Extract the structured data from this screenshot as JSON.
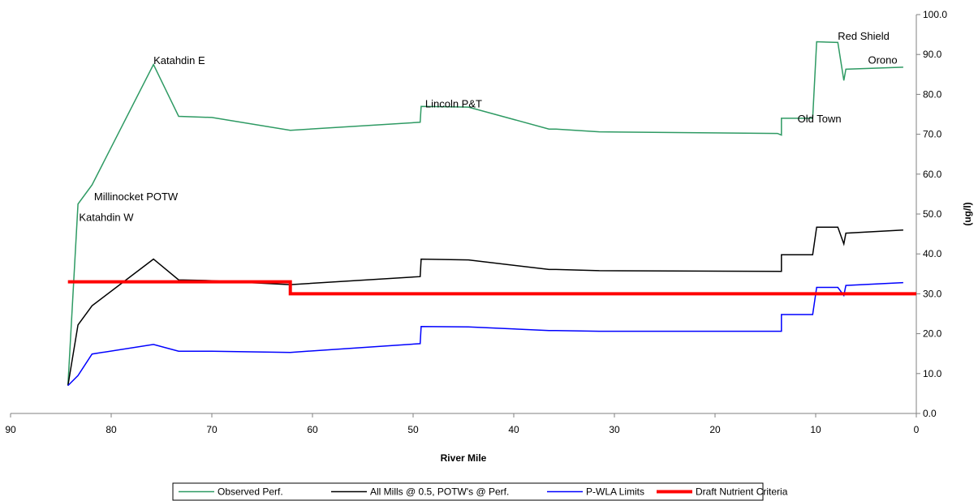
{
  "chart_data": {
    "type": "line",
    "xlabel": "River Mile",
    "ylabel": "(ug/l)",
    "xlim": [
      90,
      0
    ],
    "ylim": [
      0,
      100
    ],
    "x_ticks": [
      "90",
      "80",
      "70",
      "60",
      "50",
      "40",
      "30",
      "20",
      "10",
      "0"
    ],
    "y_ticks": [
      "0.0",
      "10.0",
      "20.0",
      "30.0",
      "40.0",
      "50.0",
      "60.0",
      "70.0",
      "80.0",
      "90.0",
      "100.0"
    ],
    "grid": false,
    "legend_position": "bottom",
    "series": [
      {
        "name": "Observed Perf.",
        "color": "#2e9a63",
        "points": [
          [
            84.3,
            7
          ],
          [
            83.3,
            52.5
          ],
          [
            81.9,
            57.3
          ],
          [
            75.8,
            87.5
          ],
          [
            73.3,
            74.5
          ],
          [
            70,
            74.2
          ],
          [
            62.2,
            71
          ],
          [
            49.3,
            73
          ],
          [
            49.2,
            77
          ],
          [
            44.5,
            76.8
          ],
          [
            36.5,
            71.3
          ],
          [
            35.8,
            71.3
          ],
          [
            31.5,
            70.6
          ],
          [
            13.8,
            70.2
          ],
          [
            13.4,
            69.8
          ],
          [
            13.4,
            74
          ],
          [
            10.3,
            74
          ],
          [
            9.9,
            93.2
          ],
          [
            7.8,
            93
          ],
          [
            7.2,
            83.5
          ],
          [
            7,
            86.3
          ],
          [
            1.3,
            86.8
          ]
        ]
      },
      {
        "name": "All Mills @ 0.5, POTW's @ Perf.",
        "color": "#000000",
        "points": [
          [
            84.3,
            7
          ],
          [
            83.3,
            22.2
          ],
          [
            81.9,
            27
          ],
          [
            75.8,
            38.7
          ],
          [
            73.3,
            33.5
          ],
          [
            70,
            33.3
          ],
          [
            62.2,
            32.3
          ],
          [
            49.3,
            34.3
          ],
          [
            49.2,
            38.7
          ],
          [
            44.5,
            38.5
          ],
          [
            36.5,
            36.1
          ],
          [
            35.8,
            36.1
          ],
          [
            31.5,
            35.8
          ],
          [
            13.4,
            35.6
          ],
          [
            13.4,
            39.8
          ],
          [
            10.3,
            39.8
          ],
          [
            9.9,
            46.7
          ],
          [
            7.8,
            46.7
          ],
          [
            7.2,
            42.5
          ],
          [
            7,
            45.2
          ],
          [
            1.3,
            46
          ]
        ]
      },
      {
        "name": "P-WLA Limits",
        "color": "#0000ff",
        "points": [
          [
            84.3,
            7
          ],
          [
            83.3,
            9.5
          ],
          [
            81.9,
            14.9
          ],
          [
            75.8,
            17.3
          ],
          [
            73.3,
            15.6
          ],
          [
            70,
            15.6
          ],
          [
            62.2,
            15.3
          ],
          [
            49.3,
            17.5
          ],
          [
            49.2,
            21.8
          ],
          [
            44.5,
            21.7
          ],
          [
            36.5,
            20.8
          ],
          [
            35.8,
            20.8
          ],
          [
            31.5,
            20.6
          ],
          [
            13.4,
            20.6
          ],
          [
            13.4,
            24.8
          ],
          [
            10.3,
            24.8
          ],
          [
            9.9,
            31.6
          ],
          [
            7.8,
            31.6
          ],
          [
            7.2,
            29.6
          ],
          [
            7,
            32.1
          ],
          [
            1.3,
            32.8
          ]
        ]
      },
      {
        "name": "Draft Nutrient Criteria",
        "color": "#ff0000",
        "points": [
          [
            84.3,
            33
          ],
          [
            62.2,
            33
          ],
          [
            62.2,
            30
          ],
          [
            0,
            30
          ]
        ]
      }
    ],
    "annotations": [
      {
        "text": "Katahdin W",
        "x": 83.2,
        "y": 48.3
      },
      {
        "text": "Millinocket POTW",
        "x": 81.7,
        "y": 53.5
      },
      {
        "text": "Katahdin E",
        "x": 75.8,
        "y": 87.6
      },
      {
        "text": "Lincoln P&T",
        "x": 48.8,
        "y": 76.7
      },
      {
        "text": "Old Town",
        "x": 11.8,
        "y": 73
      },
      {
        "text": "Red Shield",
        "x": 7.8,
        "y": 93.7
      },
      {
        "text": "Orono",
        "x": 4.8,
        "y": 87.7
      }
    ]
  }
}
